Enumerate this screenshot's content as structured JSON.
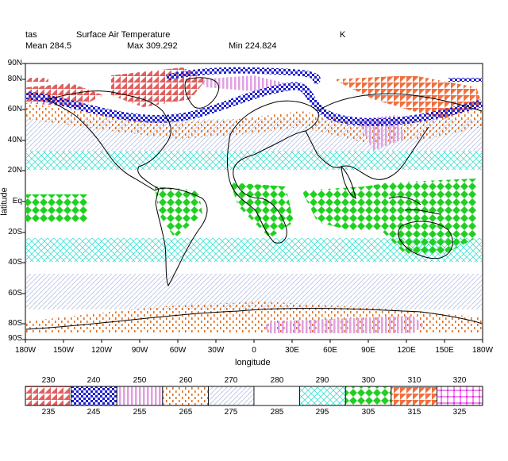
{
  "header": {
    "variable": "tas",
    "long_name": "Surface Air Temperature",
    "units": "K",
    "mean_label": "Mean 284.5",
    "max_label": "Max 309.292",
    "min_label": "Min 224.824"
  },
  "axes": {
    "x_title": "longitude",
    "y_title": "latitude",
    "x_ticks": [
      "180W",
      "150W",
      "120W",
      "90W",
      "60W",
      "30W",
      "0",
      "30E",
      "60E",
      "90E",
      "120E",
      "150E",
      "180W"
    ],
    "y_ticks": [
      "90N",
      "80N",
      "60N",
      "40N",
      "20N",
      "Eq",
      "20S",
      "40S",
      "60S",
      "80S",
      "90S"
    ]
  },
  "legend": {
    "top_labels": [
      "230",
      "240",
      "250",
      "260",
      "270",
      "280",
      "290",
      "300",
      "310",
      "320"
    ],
    "bottom_labels": [
      "235",
      "245",
      "255",
      "265",
      "275",
      "285",
      "295",
      "305",
      "315",
      "325"
    ],
    "colors": [
      "#e06060",
      "#2020d0",
      "#e0a0e0",
      "#e07020",
      "#c0c8e8",
      "#ffffff",
      "#40e0d0",
      "#20d020",
      "#f07040",
      "#e020e0"
    ]
  }
}
